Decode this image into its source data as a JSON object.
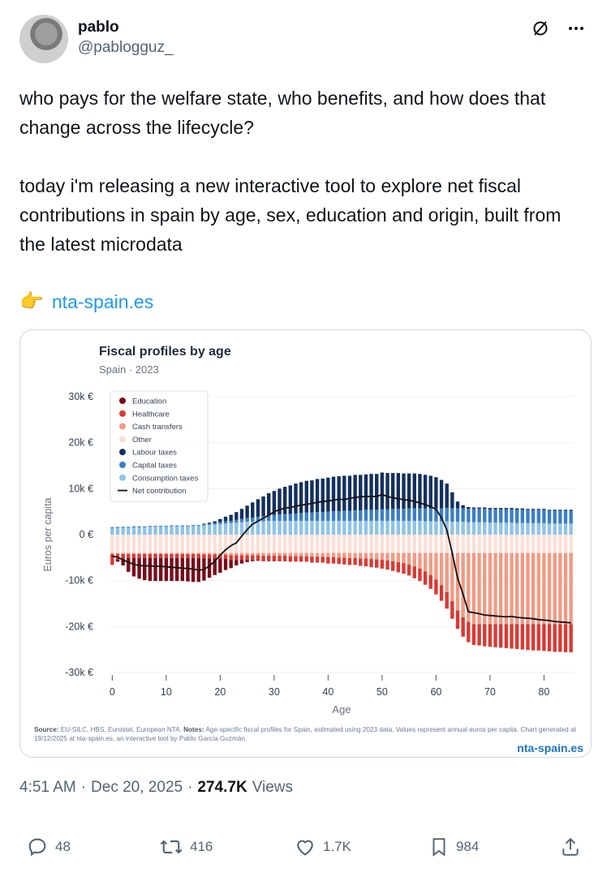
{
  "user": {
    "display_name": "pablo",
    "handle": "@pablogguz_"
  },
  "tweet": {
    "text": "who pays for the welfare state, who benefits, and how does that change across the lifecycle?\n\ntoday i'm releasing a new interactive tool to explore net fiscal contributions in spain by age, sex, education and origin, built from the latest microdata",
    "link_emoji": "👉",
    "link_text": "nta-spain.es"
  },
  "card": {
    "source_label": "Source:",
    "source_text": " EU-SILC, HBS, Eurostat, European NTA. ",
    "notes_label": "Notes:",
    "notes_text": " Age-specific fiscal profiles for Spain, estimated using 2023 data. Values represent annual euros per capita. Chart generated at 19/12/2025 at nta-spain.es, an interactive tool by Pablo García Guzmán.",
    "brand": "nta-spain.es"
  },
  "meta": {
    "time": "4:51 AM",
    "sep1": "·",
    "date": "Dec 20, 2025",
    "sep2": "·",
    "views": "274.7K",
    "views_label": "Views"
  },
  "actions": {
    "replies": "48",
    "reposts": "416",
    "likes": "1.7K",
    "bookmarks": "984"
  },
  "chart_data": {
    "type": "bar",
    "title": "Fiscal profiles by age",
    "subtitle": "Spain · 2023",
    "xlabel": "Age",
    "ylabel": "Euros per capita",
    "xlim": [
      0,
      85
    ],
    "ylim": [
      -30000,
      30000
    ],
    "xticks": [
      "0",
      "10",
      "20",
      "30",
      "40",
      "50",
      "60",
      "70",
      "80"
    ],
    "yticks": [
      "30k €",
      "20k €",
      "10k €",
      "0 €",
      "-10k €",
      "-20k €",
      "-30k €"
    ],
    "legend_position": "top-left",
    "legend": [
      {
        "name": "Education",
        "color": "#7a0c1a"
      },
      {
        "name": "Healthcare",
        "color": "#d93a33"
      },
      {
        "name": "Cash transfers",
        "color": "#f19a84"
      },
      {
        "name": "Other",
        "color": "#fbe0d7"
      },
      {
        "name": "Labour taxes",
        "color": "#14305e"
      },
      {
        "name": "Capital taxes",
        "color": "#3b7fc4"
      },
      {
        "name": "Consumption taxes",
        "color": "#8fc3e6"
      },
      {
        "name": "Net contribution",
        "color": "#111111"
      }
    ],
    "ages": [
      0,
      1,
      2,
      3,
      4,
      5,
      6,
      7,
      8,
      9,
      10,
      11,
      12,
      13,
      14,
      15,
      16,
      17,
      18,
      19,
      20,
      21,
      22,
      23,
      24,
      25,
      26,
      27,
      28,
      29,
      30,
      31,
      32,
      33,
      34,
      35,
      36,
      37,
      38,
      39,
      40,
      41,
      42,
      43,
      44,
      45,
      46,
      47,
      48,
      49,
      50,
      51,
      52,
      53,
      54,
      55,
      56,
      57,
      58,
      59,
      60,
      61,
      62,
      63,
      64,
      65,
      66,
      67,
      68,
      69,
      70,
      71,
      72,
      73,
      74,
      75,
      76,
      77,
      78,
      79,
      80,
      81,
      82,
      83,
      84,
      85
    ],
    "series": [
      {
        "name": "Consumption taxes",
        "values": [
          1400,
          1500,
          1500,
          1500,
          1600,
          1600,
          1600,
          1700,
          1700,
          1700,
          1700,
          1800,
          1800,
          1800,
          1800,
          1900,
          1900,
          2000,
          2100,
          2200,
          2300,
          2400,
          2500,
          2600,
          2700,
          2800,
          2800,
          2900,
          2900,
          3000,
          3000,
          3000,
          3000,
          3000,
          3000,
          3000,
          3000,
          3000,
          3000,
          3000,
          3000,
          3000,
          3000,
          3000,
          3000,
          3000,
          3000,
          3000,
          3000,
          3000,
          3000,
          3000,
          3000,
          3000,
          3000,
          3000,
          3000,
          3000,
          2900,
          2900,
          2900,
          2900,
          2900,
          2800,
          2800,
          2800,
          2700,
          2700,
          2700,
          2700,
          2600,
          2600,
          2600,
          2600,
          2600,
          2500,
          2500,
          2500,
          2500,
          2500,
          2500,
          2400,
          2400,
          2400,
          2400,
          2400
        ]
      },
      {
        "name": "Capital taxes",
        "values": [
          200,
          200,
          200,
          200,
          200,
          200,
          200,
          200,
          200,
          200,
          200,
          200,
          200,
          200,
          200,
          200,
          200,
          300,
          300,
          300,
          400,
          500,
          500,
          600,
          700,
          800,
          900,
          1000,
          1100,
          1200,
          1300,
          1400,
          1500,
          1500,
          1600,
          1700,
          1800,
          1800,
          1900,
          1900,
          2000,
          2100,
          2100,
          2200,
          2200,
          2300,
          2300,
          2400,
          2400,
          2400,
          2500,
          2500,
          2600,
          2600,
          2600,
          2700,
          2700,
          2700,
          2800,
          2800,
          2800,
          2800,
          2900,
          2900,
          2900,
          2900,
          2900,
          2900,
          2900,
          2900,
          2900,
          2900,
          2900,
          2900,
          2900,
          2900,
          2900,
          2900,
          2900,
          2900,
          2900,
          2800,
          2800,
          2800,
          2800,
          2800
        ]
      },
      {
        "name": "Labour taxes",
        "values": [
          0,
          0,
          0,
          0,
          0,
          0,
          0,
          0,
          0,
          0,
          0,
          0,
          0,
          0,
          0,
          0,
          0,
          100,
          200,
          400,
          700,
          1000,
          1300,
          1700,
          2200,
          2700,
          3300,
          3800,
          4300,
          4800,
          5200,
          5600,
          5900,
          6200,
          6500,
          6700,
          6900,
          7000,
          7200,
          7300,
          7400,
          7500,
          7600,
          7600,
          7600,
          7700,
          7700,
          7700,
          7800,
          7800,
          8000,
          7900,
          7800,
          7800,
          7700,
          7600,
          7600,
          7500,
          7300,
          7100,
          6800,
          6200,
          5300,
          3500,
          1500,
          700,
          400,
          300,
          300,
          300,
          300,
          300,
          300,
          300,
          300,
          300,
          300,
          200,
          200,
          200,
          200,
          200,
          200,
          200,
          200,
          200
        ]
      },
      {
        "name": "Other",
        "values": [
          -4000,
          -4000,
          -4000,
          -4000,
          -4000,
          -4000,
          -4000,
          -4000,
          -4000,
          -4000,
          -4000,
          -4000,
          -4000,
          -4000,
          -4000,
          -4000,
          -4000,
          -4000,
          -4000,
          -4000,
          -4000,
          -4000,
          -4000,
          -4000,
          -4000,
          -4000,
          -4000,
          -4000,
          -4000,
          -4000,
          -4000,
          -4000,
          -4000,
          -4000,
          -4000,
          -4000,
          -4000,
          -4000,
          -4000,
          -4000,
          -4000,
          -4000,
          -4000,
          -4000,
          -4000,
          -4000,
          -4000,
          -4000,
          -4000,
          -4000,
          -4000,
          -4000,
          -4000,
          -4000,
          -4000,
          -4000,
          -4000,
          -4000,
          -4000,
          -4000,
          -4000,
          -4000,
          -4000,
          -4000,
          -4000,
          -4000,
          -4000,
          -4000,
          -4000,
          -4000,
          -4000,
          -4000,
          -4000,
          -4000,
          -4000,
          -4000,
          -4000,
          -4000,
          -4000,
          -4000,
          -4000,
          -4000,
          -4000,
          -4000,
          -4000,
          -4000
        ]
      },
      {
        "name": "Cash transfers",
        "values": [
          -200,
          -200,
          -200,
          -200,
          -200,
          -200,
          -200,
          -200,
          -200,
          -200,
          -200,
          -200,
          -200,
          -200,
          -200,
          -200,
          -200,
          -300,
          -300,
          -300,
          -400,
          -400,
          -500,
          -500,
          -500,
          -500,
          -500,
          -500,
          -600,
          -600,
          -600,
          -600,
          -600,
          -700,
          -700,
          -700,
          -700,
          -800,
          -800,
          -800,
          -900,
          -900,
          -1000,
          -1000,
          -1100,
          -1100,
          -1200,
          -1200,
          -1300,
          -1400,
          -1500,
          -1600,
          -1800,
          -2000,
          -2200,
          -2500,
          -2900,
          -3400,
          -4000,
          -4800,
          -5800,
          -7000,
          -8500,
          -10500,
          -12500,
          -14000,
          -15000,
          -15500,
          -15500,
          -15500,
          -15500,
          -15500,
          -15500,
          -15500,
          -15500,
          -15500,
          -15500,
          -15500,
          -15500,
          -15500,
          -15500,
          -15500,
          -15500,
          -15500,
          -15500,
          -15500
        ]
      },
      {
        "name": "Healthcare",
        "values": [
          -2400,
          -1200,
          -1000,
          -900,
          -900,
          -900,
          -900,
          -900,
          -900,
          -900,
          -900,
          -900,
          -900,
          -900,
          -900,
          -900,
          -900,
          -900,
          -900,
          -900,
          -900,
          -900,
          -1000,
          -1000,
          -1000,
          -1000,
          -1000,
          -1000,
          -1100,
          -1100,
          -1100,
          -1100,
          -1200,
          -1200,
          -1200,
          -1200,
          -1200,
          -1300,
          -1300,
          -1300,
          -1400,
          -1400,
          -1400,
          -1500,
          -1500,
          -1500,
          -1600,
          -1700,
          -1800,
          -1800,
          -1900,
          -2000,
          -2100,
          -2200,
          -2300,
          -2400,
          -2600,
          -2700,
          -2900,
          -3000,
          -3200,
          -3400,
          -3600,
          -3800,
          -4000,
          -4200,
          -4400,
          -4500,
          -4600,
          -4800,
          -4900,
          -5000,
          -5100,
          -5200,
          -5300,
          -5400,
          -5500,
          -5600,
          -5700,
          -5700,
          -5800,
          -5900,
          -6000,
          -6000,
          -6100,
          -6100
        ]
      },
      {
        "name": "Education",
        "values": [
          0,
          -500,
          -1500,
          -3000,
          -4000,
          -4500,
          -4800,
          -5000,
          -5000,
          -5000,
          -5000,
          -5000,
          -5000,
          -5000,
          -5100,
          -5200,
          -5200,
          -4800,
          -4200,
          -3600,
          -3000,
          -2400,
          -1800,
          -1200,
          -800,
          -500,
          -300,
          -200,
          -100,
          -100,
          -100,
          -100,
          0,
          0,
          0,
          0,
          0,
          0,
          0,
          0,
          0,
          0,
          0,
          0,
          0,
          0,
          0,
          0,
          0,
          0,
          0,
          0,
          0,
          0,
          0,
          0,
          0,
          0,
          0,
          0,
          0,
          0,
          0,
          0,
          0,
          0,
          0,
          0,
          0,
          0,
          0,
          0,
          0,
          0,
          0,
          0,
          0,
          0,
          0,
          0,
          0,
          0,
          0,
          0,
          0,
          0
        ]
      },
      {
        "name": "Net contribution",
        "values": [
          -4700,
          -4900,
          -5500,
          -6000,
          -6500,
          -6700,
          -6800,
          -6800,
          -6900,
          -6900,
          -7000,
          -7100,
          -7200,
          -7300,
          -7400,
          -7500,
          -7700,
          -7600,
          -6800,
          -5800,
          -4500,
          -3300,
          -2400,
          -1800,
          -300,
          1100,
          2300,
          2900,
          3600,
          4200,
          5000,
          5400,
          5800,
          5900,
          6200,
          6400,
          6600,
          6800,
          7000,
          7200,
          7300,
          7500,
          7700,
          7600,
          7900,
          8100,
          8200,
          8300,
          8300,
          8300,
          8700,
          8300,
          8000,
          7800,
          7600,
          7500,
          7200,
          6900,
          6500,
          6100,
          5500,
          3700,
          1000,
          -4000,
          -9500,
          -13000,
          -16800,
          -17000,
          -17200,
          -17500,
          -17600,
          -17700,
          -17800,
          -17900,
          -17800,
          -18000,
          -18100,
          -18200,
          -18300,
          -18500,
          -18600,
          -18700,
          -18900,
          -19000,
          -19100,
          -19200
        ]
      }
    ]
  }
}
